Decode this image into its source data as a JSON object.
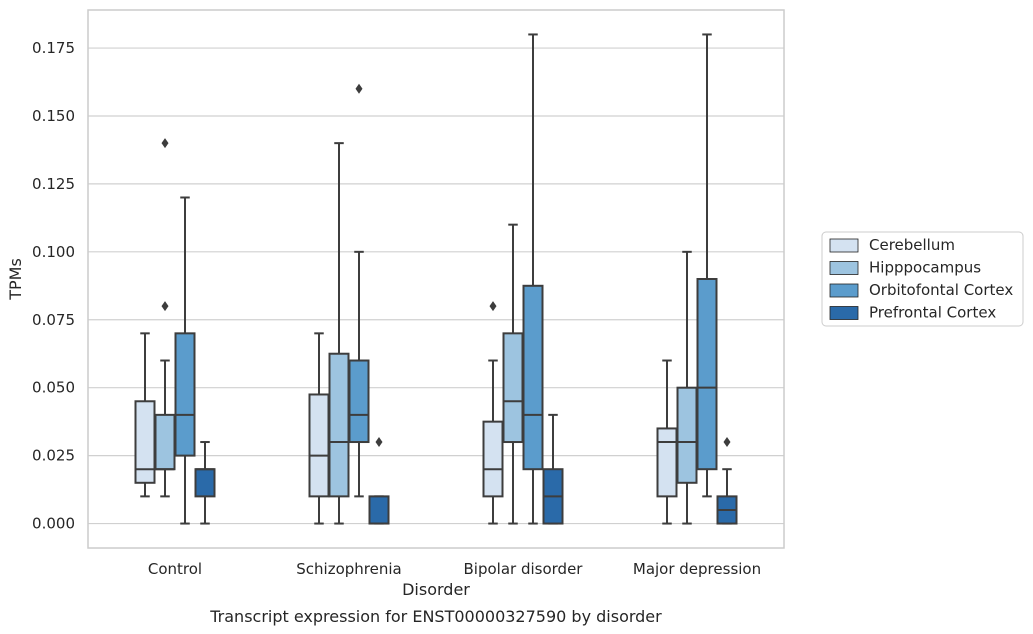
{
  "chart_data": {
    "type": "box",
    "caption": "Transcript expression for ENST00000327590 by disorder",
    "xlabel": "Disorder",
    "ylabel": "TPMs",
    "ylim": [
      -0.009,
      0.189
    ],
    "yticks": [
      0.0,
      0.025,
      0.05,
      0.075,
      0.1,
      0.125,
      0.15,
      0.175
    ],
    "ytick_labels": [
      "0.000",
      "0.025",
      "0.050",
      "0.075",
      "0.100",
      "0.125",
      "0.150",
      "0.175"
    ],
    "grid": "horizontal",
    "legend_position": "right",
    "categories": [
      "Control",
      "Schizophrenia",
      "Bipolar disorder",
      "Major depression"
    ],
    "series": [
      {
        "name": "Cerebellum",
        "color": "#d4e2f1",
        "boxes": [
          {
            "whislo": 0.01,
            "q1": 0.015,
            "med": 0.02,
            "q3": 0.045,
            "whishi": 0.07,
            "fliers": []
          },
          {
            "whislo": 0.0,
            "q1": 0.01,
            "med": 0.025,
            "q3": 0.0475,
            "whishi": 0.07,
            "fliers": []
          },
          {
            "whislo": 0.0,
            "q1": 0.01,
            "med": 0.02,
            "q3": 0.0375,
            "whishi": 0.06,
            "fliers": [
              0.08
            ]
          },
          {
            "whislo": 0.0,
            "q1": 0.01,
            "med": 0.03,
            "q3": 0.035,
            "whishi": 0.06,
            "fliers": []
          }
        ]
      },
      {
        "name": "Hipppocampus",
        "color": "#9dc4e0",
        "boxes": [
          {
            "whislo": 0.01,
            "q1": 0.02,
            "med": 0.02,
            "q3": 0.04,
            "whishi": 0.06,
            "fliers": [
              0.08,
              0.14
            ]
          },
          {
            "whislo": 0.0,
            "q1": 0.01,
            "med": 0.03,
            "q3": 0.0625,
            "whishi": 0.14,
            "fliers": []
          },
          {
            "whislo": 0.0,
            "q1": 0.03,
            "med": 0.045,
            "q3": 0.07,
            "whishi": 0.11,
            "fliers": []
          },
          {
            "whislo": 0.0,
            "q1": 0.015,
            "med": 0.03,
            "q3": 0.05,
            "whishi": 0.1,
            "fliers": []
          }
        ]
      },
      {
        "name": "Orbitofontal Cortex",
        "color": "#5b9ccc",
        "boxes": [
          {
            "whislo": 0.0,
            "q1": 0.025,
            "med": 0.04,
            "q3": 0.07,
            "whishi": 0.12,
            "fliers": []
          },
          {
            "whislo": 0.01,
            "q1": 0.03,
            "med": 0.04,
            "q3": 0.06,
            "whishi": 0.1,
            "fliers": [
              0.16
            ]
          },
          {
            "whislo": 0.0,
            "q1": 0.02,
            "med": 0.04,
            "q3": 0.0875,
            "whishi": 0.18,
            "fliers": []
          },
          {
            "whislo": 0.01,
            "q1": 0.02,
            "med": 0.05,
            "q3": 0.09,
            "whishi": 0.18,
            "fliers": []
          }
        ]
      },
      {
        "name": "Prefrontal Cortex",
        "color": "#2a6aa9",
        "boxes": [
          {
            "whislo": 0.0,
            "q1": 0.01,
            "med": 0.02,
            "q3": 0.02,
            "whishi": 0.03,
            "fliers": []
          },
          {
            "whislo": 0.0,
            "q1": 0.0,
            "med": 0.0,
            "q3": 0.01,
            "whishi": 0.01,
            "fliers": [
              0.03
            ]
          },
          {
            "whislo": 0.0,
            "q1": 0.0,
            "med": 0.01,
            "q3": 0.02,
            "whishi": 0.04,
            "fliers": []
          },
          {
            "whislo": 0.0,
            "q1": 0.0,
            "med": 0.005,
            "q3": 0.01,
            "whishi": 0.02,
            "fliers": [
              0.03
            ]
          }
        ]
      }
    ]
  }
}
